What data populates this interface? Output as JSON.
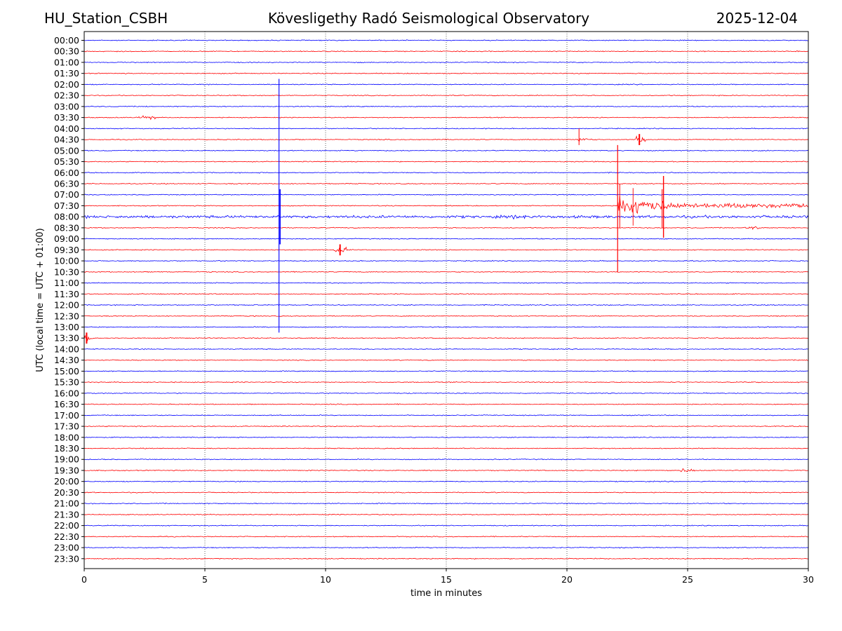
{
  "header": {
    "station": "HU_Station_CSBH",
    "title": "Kövesligethy Radó Seismological Observatory",
    "date": "2025-12-04"
  },
  "chart_data": {
    "type": "line",
    "title": "Kövesligethy Radó Seismological Observatory",
    "xlabel": "time in minutes",
    "ylabel": "UTC (local time = UTC + 01:00)",
    "xlim": [
      0,
      30
    ],
    "x_ticks": [
      0,
      5,
      10,
      15,
      20,
      25,
      30
    ],
    "x_tick_labels": [
      "0",
      "5",
      "10",
      "15",
      "20",
      "25",
      "30"
    ],
    "grid": "vertical dotted at x ticks",
    "trace_colors": [
      "#0000ff",
      "#ff0000"
    ],
    "rows": [
      "00:00",
      "00:30",
      "01:00",
      "01:30",
      "02:00",
      "02:30",
      "03:00",
      "03:30",
      "04:00",
      "04:30",
      "05:00",
      "05:30",
      "06:00",
      "06:30",
      "07:00",
      "07:30",
      "08:00",
      "08:30",
      "09:00",
      "09:30",
      "10:00",
      "10:30",
      "11:00",
      "11:30",
      "12:00",
      "12:30",
      "13:00",
      "13:30",
      "14:00",
      "14:30",
      "15:00",
      "15:30",
      "16:00",
      "16:30",
      "17:00",
      "17:30",
      "18:00",
      "18:30",
      "19:00",
      "19:30",
      "20:00",
      "20:30",
      "21:00",
      "21:30",
      "22:00",
      "22:30",
      "23:00",
      "23:30"
    ],
    "events": [
      {
        "row": "08:00",
        "minute": 8.1,
        "type": "spike",
        "extent_rows_up": 12.5,
        "extent_rows_down": 10.5
      },
      {
        "row": "07:30",
        "minute": 22.1,
        "type": "earthquake",
        "coda_end_minute": 30,
        "extent_rows_up": 5.5,
        "extent_rows_down": 6.0
      },
      {
        "row": "07:30",
        "minute": 24.0,
        "type": "burst",
        "extent_rows_up": 2.7,
        "extent_rows_down": 2.9
      },
      {
        "row": "04:30",
        "minute": 20.5,
        "type": "small",
        "extent_rows_up": 1.0,
        "extent_rows_down": 0.5
      },
      {
        "row": "04:30",
        "minute": 23.0,
        "type": "burst_small",
        "extent_rows_up": 0.5,
        "extent_rows_down": 0.5
      },
      {
        "row": "09:30",
        "minute": 10.6,
        "type": "burst_small",
        "extent_rows_up": 0.5,
        "extent_rows_down": 0.5
      },
      {
        "row": "13:30",
        "minute": 0.1,
        "type": "burst_small",
        "extent_rows_up": 0.5,
        "extent_rows_down": 0.5
      },
      {
        "row": "03:30",
        "minute": 2.6,
        "type": "noise_burst",
        "extent_rows_up": 0.2,
        "extent_rows_down": 0.2
      },
      {
        "row": "08:00",
        "minute": 18.1,
        "type": "noise_burst",
        "extent_rows_up": 0.3,
        "extent_rows_down": 0.3
      },
      {
        "row": "08:30",
        "minute": 27.6,
        "type": "noise_burst",
        "extent_rows_up": 0.25,
        "extent_rows_down": 0.25
      },
      {
        "row": "19:30",
        "minute": 25.0,
        "type": "noise_burst",
        "extent_rows_up": 0.25,
        "extent_rows_down": 0.25
      }
    ]
  }
}
